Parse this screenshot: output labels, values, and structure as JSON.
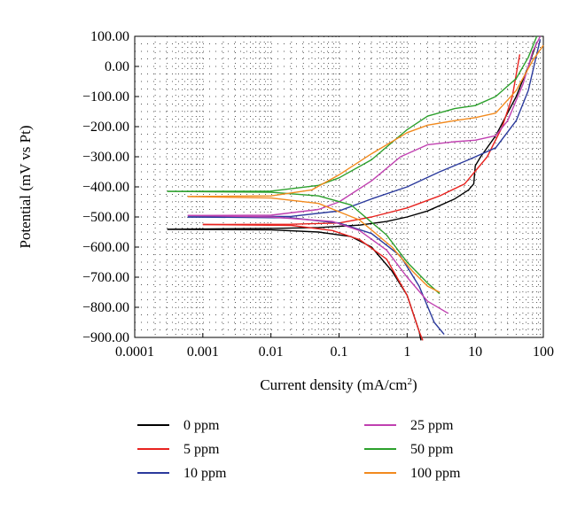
{
  "chart_data": {
    "type": "line",
    "xlabel": "Current density (mA/cm²)",
    "ylabel": "Potential (mV vs Pt)",
    "x_scale": "log",
    "xlim": [
      0.0001,
      100
    ],
    "ylim": [
      -900,
      100
    ],
    "x_ticks": [
      "0.0001",
      "0.001",
      "0.01",
      "0.1",
      "1",
      "10",
      "100"
    ],
    "y_ticks": [
      "100.00",
      "0.00",
      "−100.00",
      "−200.00",
      "−300.00",
      "−400.00",
      "−500.00",
      "−600.00",
      "−700.00",
      "−800.00",
      "−900.00"
    ],
    "grid": true,
    "legend_position": "bottom",
    "series": [
      {
        "name": "0 ppm",
        "color": "#000000",
        "anodic": [
          [
            0.0003,
            -541
          ],
          [
            0.01,
            -538
          ],
          [
            0.05,
            -535
          ],
          [
            0.2,
            -527
          ],
          [
            0.5,
            -515
          ],
          [
            1,
            -500
          ],
          [
            2,
            -480
          ],
          [
            5,
            -440
          ],
          [
            8,
            -410
          ],
          [
            9.5,
            -390
          ],
          [
            10,
            -330
          ],
          [
            12,
            -300
          ],
          [
            20,
            -230
          ],
          [
            40,
            -100
          ],
          [
            60,
            0
          ],
          [
            80,
            80
          ]
        ],
        "cathodic": [
          [
            0.0003,
            -541
          ],
          [
            0.01,
            -543
          ],
          [
            0.05,
            -550
          ],
          [
            0.15,
            -565
          ],
          [
            0.3,
            -600
          ],
          [
            0.6,
            -680
          ],
          [
            1,
            -760
          ],
          [
            1.5,
            -880
          ],
          [
            1.6,
            -910
          ]
        ]
      },
      {
        "name": "5 ppm",
        "color": "#e8231f",
        "anodic": [
          [
            0.001,
            -525
          ],
          [
            0.02,
            -524
          ],
          [
            0.1,
            -520
          ],
          [
            0.3,
            -500
          ],
          [
            1,
            -470
          ],
          [
            3,
            -430
          ],
          [
            7,
            -390
          ],
          [
            15,
            -300
          ],
          [
            25,
            -200
          ],
          [
            35,
            -100
          ],
          [
            45,
            40
          ]
        ],
        "cathodic": [
          [
            0.001,
            -525
          ],
          [
            0.02,
            -528
          ],
          [
            0.08,
            -545
          ],
          [
            0.2,
            -575
          ],
          [
            0.5,
            -640
          ],
          [
            1,
            -760
          ],
          [
            1.5,
            -880
          ],
          [
            1.7,
            -910
          ]
        ]
      },
      {
        "name": "10 ppm",
        "color": "#2b3a9c",
        "anodic": [
          [
            0.0006,
            -500
          ],
          [
            0.02,
            -498
          ],
          [
            0.1,
            -480
          ],
          [
            0.3,
            -440
          ],
          [
            1,
            -400
          ],
          [
            3,
            -350
          ],
          [
            8,
            -310
          ],
          [
            20,
            -270
          ],
          [
            40,
            -180
          ],
          [
            60,
            -80
          ],
          [
            90,
            90
          ]
        ],
        "cathodic": [
          [
            0.0006,
            -500
          ],
          [
            0.02,
            -503
          ],
          [
            0.1,
            -520
          ],
          [
            0.3,
            -555
          ],
          [
            0.8,
            -630
          ],
          [
            1.5,
            -730
          ],
          [
            2.5,
            -850
          ],
          [
            3.5,
            -890
          ]
        ]
      },
      {
        "name": "25 ppm",
        "color": "#c040b0",
        "anodic": [
          [
            0.0006,
            -495
          ],
          [
            0.01,
            -494
          ],
          [
            0.05,
            -475
          ],
          [
            0.1,
            -450
          ],
          [
            0.3,
            -380
          ],
          [
            0.8,
            -300
          ],
          [
            2,
            -260
          ],
          [
            5,
            -250
          ],
          [
            10,
            -245
          ],
          [
            20,
            -230
          ],
          [
            30,
            -180
          ],
          [
            50,
            -60
          ],
          [
            70,
            50
          ],
          [
            90,
            100
          ]
        ],
        "cathodic": [
          [
            0.0006,
            -495
          ],
          [
            0.01,
            -500
          ],
          [
            0.08,
            -515
          ],
          [
            0.2,
            -545
          ],
          [
            0.5,
            -610
          ],
          [
            1,
            -700
          ],
          [
            2,
            -780
          ],
          [
            4,
            -820
          ]
        ]
      },
      {
        "name": "50 ppm",
        "color": "#2ca02c",
        "anodic": [
          [
            0.0003,
            -415
          ],
          [
            0.01,
            -414
          ],
          [
            0.05,
            -395
          ],
          [
            0.1,
            -370
          ],
          [
            0.3,
            -310
          ],
          [
            1,
            -210
          ],
          [
            2,
            -165
          ],
          [
            5,
            -140
          ],
          [
            10,
            -130
          ],
          [
            20,
            -100
          ],
          [
            40,
            -40
          ],
          [
            60,
            30
          ],
          [
            80,
            100
          ]
        ],
        "cathodic": [
          [
            0.0003,
            -415
          ],
          [
            0.01,
            -418
          ],
          [
            0.05,
            -430
          ],
          [
            0.15,
            -460
          ],
          [
            0.5,
            -560
          ],
          [
            1,
            -650
          ],
          [
            2,
            -720
          ],
          [
            3,
            -755
          ]
        ]
      },
      {
        "name": "100 ppm",
        "color": "#f28a1e",
        "anodic": [
          [
            0.0006,
            -432
          ],
          [
            0.01,
            -430
          ],
          [
            0.04,
            -410
          ],
          [
            0.1,
            -360
          ],
          [
            0.3,
            -290
          ],
          [
            1,
            -220
          ],
          [
            2,
            -195
          ],
          [
            5,
            -180
          ],
          [
            10,
            -170
          ],
          [
            20,
            -155
          ],
          [
            40,
            -80
          ],
          [
            70,
            20
          ],
          [
            100,
            70
          ]
        ],
        "cathodic": [
          [
            0.0006,
            -432
          ],
          [
            0.01,
            -437
          ],
          [
            0.05,
            -455
          ],
          [
            0.2,
            -510
          ],
          [
            0.6,
            -600
          ],
          [
            1.2,
            -680
          ],
          [
            2,
            -730
          ],
          [
            3,
            -750
          ]
        ]
      }
    ]
  }
}
